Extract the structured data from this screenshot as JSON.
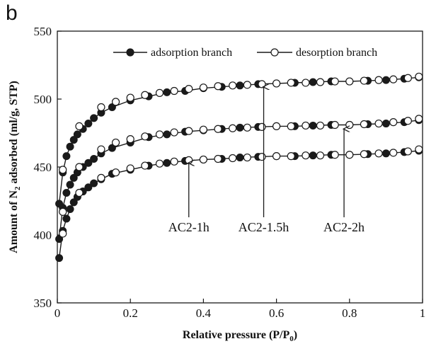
{
  "panel_letter": "b",
  "chart_data": {
    "type": "scatter",
    "xlabel": "Relative pressure (P/P",
    "xlabel_sub": "0",
    "xlabel_end": ")",
    "ylabel": "Amount of N",
    "ylabel_sub": "2",
    "ylabel_end": " adsorbed (ml/g, STP)",
    "xlim": [
      0,
      1
    ],
    "ylim": [
      350,
      550
    ],
    "xticks": [
      0,
      0.2,
      0.4,
      0.6,
      0.8,
      1
    ],
    "xtick_labels": [
      "0",
      "0.2",
      "0.4",
      "0.6",
      "0.8",
      "1"
    ],
    "yticks": [
      350,
      400,
      450,
      500,
      550
    ],
    "ytick_labels": [
      "350",
      "400",
      "450",
      "500",
      "550"
    ],
    "grid": false,
    "legend_position": "top",
    "legend": [
      {
        "label": "adsorption branch",
        "marker": "filled-circle"
      },
      {
        "label": "desorption branch",
        "marker": "open-circle"
      }
    ],
    "colors": {
      "filled": "#1a1a1a",
      "open": "#ffffff",
      "line": "#1a1a1a"
    },
    "series": [
      {
        "id": "ac2-2h",
        "label": "AC2-2h",
        "adsorption": [
          [
            0.005,
            423
          ],
          [
            0.015,
            446
          ],
          [
            0.025,
            458
          ],
          [
            0.035,
            465
          ],
          [
            0.045,
            470
          ],
          [
            0.055,
            474
          ],
          [
            0.07,
            478
          ],
          [
            0.085,
            482
          ],
          [
            0.1,
            486
          ],
          [
            0.12,
            490
          ],
          [
            0.15,
            494
          ],
          [
            0.2,
            499
          ],
          [
            0.25,
            502
          ],
          [
            0.3,
            505
          ],
          [
            0.35,
            506
          ],
          [
            0.4,
            508
          ],
          [
            0.45,
            509
          ],
          [
            0.5,
            510
          ],
          [
            0.55,
            511
          ],
          [
            0.6,
            511.5
          ],
          [
            0.65,
            512
          ],
          [
            0.7,
            512.5
          ],
          [
            0.75,
            513
          ],
          [
            0.8,
            513
          ],
          [
            0.85,
            513.5
          ],
          [
            0.9,
            514
          ],
          [
            0.95,
            515
          ],
          [
            0.99,
            516
          ]
        ],
        "desorption": [
          [
            0.99,
            516.5
          ],
          [
            0.96,
            515.5
          ],
          [
            0.92,
            514.5
          ],
          [
            0.88,
            514
          ],
          [
            0.84,
            513.5
          ],
          [
            0.8,
            513
          ],
          [
            0.76,
            513
          ],
          [
            0.72,
            512.5
          ],
          [
            0.68,
            512
          ],
          [
            0.64,
            512
          ],
          [
            0.6,
            511.5
          ],
          [
            0.56,
            511
          ],
          [
            0.52,
            510.5
          ],
          [
            0.48,
            510
          ],
          [
            0.44,
            509.5
          ],
          [
            0.4,
            508.5
          ],
          [
            0.36,
            507.5
          ],
          [
            0.32,
            506
          ],
          [
            0.28,
            504.5
          ],
          [
            0.24,
            503
          ],
          [
            0.2,
            501
          ],
          [
            0.16,
            498
          ],
          [
            0.12,
            494
          ],
          [
            0.06,
            480
          ],
          [
            0.015,
            448
          ]
        ]
      },
      {
        "id": "ac2-1-5h",
        "label": "AC2-1.5h",
        "adsorption": [
          [
            0.005,
            397
          ],
          [
            0.015,
            420
          ],
          [
            0.025,
            431
          ],
          [
            0.035,
            437
          ],
          [
            0.045,
            442
          ],
          [
            0.055,
            446
          ],
          [
            0.07,
            450
          ],
          [
            0.085,
            453
          ],
          [
            0.1,
            456
          ],
          [
            0.12,
            460
          ],
          [
            0.15,
            464
          ],
          [
            0.2,
            468
          ],
          [
            0.25,
            472
          ],
          [
            0.3,
            474
          ],
          [
            0.35,
            476
          ],
          [
            0.4,
            477
          ],
          [
            0.45,
            478
          ],
          [
            0.5,
            479
          ],
          [
            0.55,
            479.5
          ],
          [
            0.6,
            480
          ],
          [
            0.65,
            480
          ],
          [
            0.7,
            480.5
          ],
          [
            0.75,
            481
          ],
          [
            0.8,
            481
          ],
          [
            0.85,
            481.5
          ],
          [
            0.9,
            482
          ],
          [
            0.95,
            483
          ],
          [
            0.99,
            484.5
          ]
        ],
        "desorption": [
          [
            0.99,
            485.5
          ],
          [
            0.96,
            484
          ],
          [
            0.92,
            483
          ],
          [
            0.88,
            482
          ],
          [
            0.84,
            481.5
          ],
          [
            0.8,
            481
          ],
          [
            0.76,
            481
          ],
          [
            0.72,
            480.5
          ],
          [
            0.68,
            480.5
          ],
          [
            0.64,
            480
          ],
          [
            0.6,
            480
          ],
          [
            0.56,
            479.5
          ],
          [
            0.52,
            479
          ],
          [
            0.48,
            478.5
          ],
          [
            0.44,
            478
          ],
          [
            0.4,
            477.5
          ],
          [
            0.36,
            476.5
          ],
          [
            0.32,
            475.5
          ],
          [
            0.28,
            474
          ],
          [
            0.24,
            472.5
          ],
          [
            0.2,
            470.5
          ],
          [
            0.16,
            468
          ],
          [
            0.12,
            463
          ],
          [
            0.06,
            450
          ],
          [
            0.015,
            417
          ]
        ]
      },
      {
        "id": "ac2-1h",
        "label": "AC2-1h",
        "adsorption": [
          [
            0.005,
            383
          ],
          [
            0.015,
            403
          ],
          [
            0.025,
            412
          ],
          [
            0.035,
            419
          ],
          [
            0.045,
            424
          ],
          [
            0.055,
            428
          ],
          [
            0.07,
            432
          ],
          [
            0.085,
            435
          ],
          [
            0.1,
            438
          ],
          [
            0.12,
            441
          ],
          [
            0.15,
            445
          ],
          [
            0.2,
            448
          ],
          [
            0.25,
            451
          ],
          [
            0.3,
            453
          ],
          [
            0.35,
            454.5
          ],
          [
            0.4,
            455.5
          ],
          [
            0.45,
            456
          ],
          [
            0.5,
            457
          ],
          [
            0.55,
            457.5
          ],
          [
            0.6,
            458
          ],
          [
            0.65,
            458
          ],
          [
            0.7,
            458.5
          ],
          [
            0.75,
            459
          ],
          [
            0.8,
            459
          ],
          [
            0.85,
            459.5
          ],
          [
            0.9,
            460
          ],
          [
            0.95,
            461
          ],
          [
            0.99,
            462
          ]
        ],
        "desorption": [
          [
            0.99,
            463
          ],
          [
            0.96,
            461.5
          ],
          [
            0.92,
            460.5
          ],
          [
            0.88,
            460
          ],
          [
            0.84,
            459.5
          ],
          [
            0.8,
            459
          ],
          [
            0.76,
            459
          ],
          [
            0.72,
            458.5
          ],
          [
            0.68,
            458.5
          ],
          [
            0.64,
            458
          ],
          [
            0.6,
            458
          ],
          [
            0.56,
            457.5
          ],
          [
            0.52,
            457
          ],
          [
            0.48,
            456.5
          ],
          [
            0.44,
            456
          ],
          [
            0.4,
            455.5
          ],
          [
            0.36,
            455
          ],
          [
            0.32,
            454
          ],
          [
            0.28,
            452.5
          ],
          [
            0.24,
            451
          ],
          [
            0.2,
            449
          ],
          [
            0.16,
            446
          ],
          [
            0.12,
            442
          ],
          [
            0.06,
            431
          ],
          [
            0.015,
            401
          ]
        ]
      }
    ],
    "annotations": [
      {
        "text": "AC2-1h",
        "arrow_from": [
          0.36,
          413
        ],
        "arrow_to": [
          0.36,
          453
        ]
      },
      {
        "text": "AC2-1.5h",
        "arrow_from": [
          0.565,
          413
        ],
        "arrow_to": [
          0.565,
          509
        ]
      },
      {
        "text": "AC2-2h",
        "arrow_from": [
          0.785,
          413
        ],
        "arrow_to": [
          0.785,
          478
        ]
      }
    ]
  }
}
